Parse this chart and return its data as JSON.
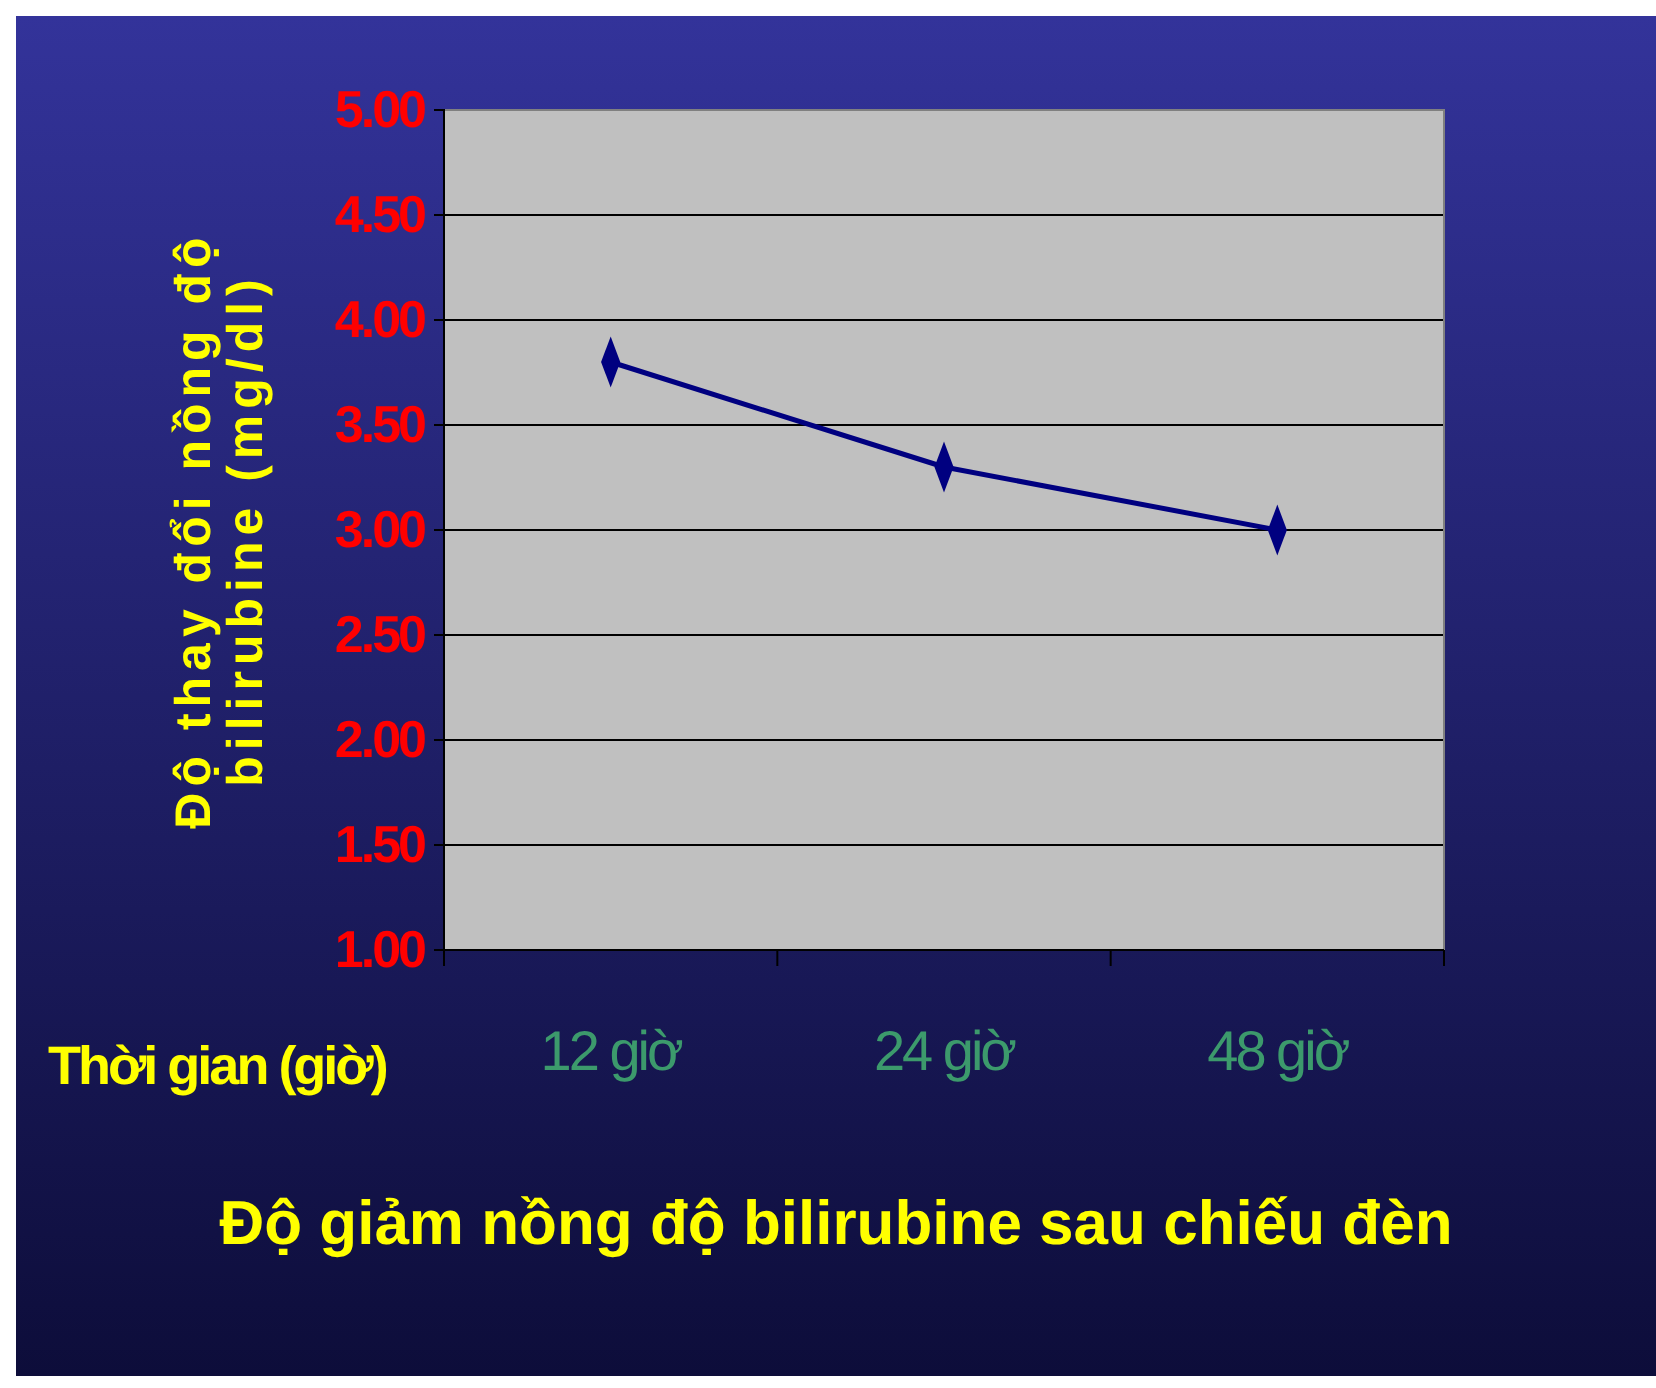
{
  "chart_data": {
    "type": "line",
    "title": "Độ giảm nồng độ bilirubine sau chiếu đèn",
    "xlabel": "Thời gian (giờ)",
    "ylabel": "Độ thay đổi nồng độ bilirubine (mg/dl)",
    "categories": [
      "12 giờ",
      "24 giờ",
      "48 giờ"
    ],
    "series": [
      {
        "color": "#000080",
        "values": [
          3.8,
          3.3,
          3.0
        ]
      }
    ],
    "ylim": [
      1,
      5
    ],
    "yticks": [
      {
        "value": 1,
        "label": "1.00"
      },
      {
        "value": 1.5,
        "label": "1.50"
      },
      {
        "value": 2,
        "label": "2.00"
      },
      {
        "value": 2.5,
        "label": "2.50"
      },
      {
        "value": 3,
        "label": "3.00"
      },
      {
        "value": 3.5,
        "label": "3.50"
      },
      {
        "value": 4,
        "label": "4.00"
      },
      {
        "value": 4.5,
        "label": "4.50"
      },
      {
        "value": 5,
        "label": "5.00"
      }
    ],
    "grid": "y",
    "marker": "diamond",
    "line_style": "solid"
  }
}
